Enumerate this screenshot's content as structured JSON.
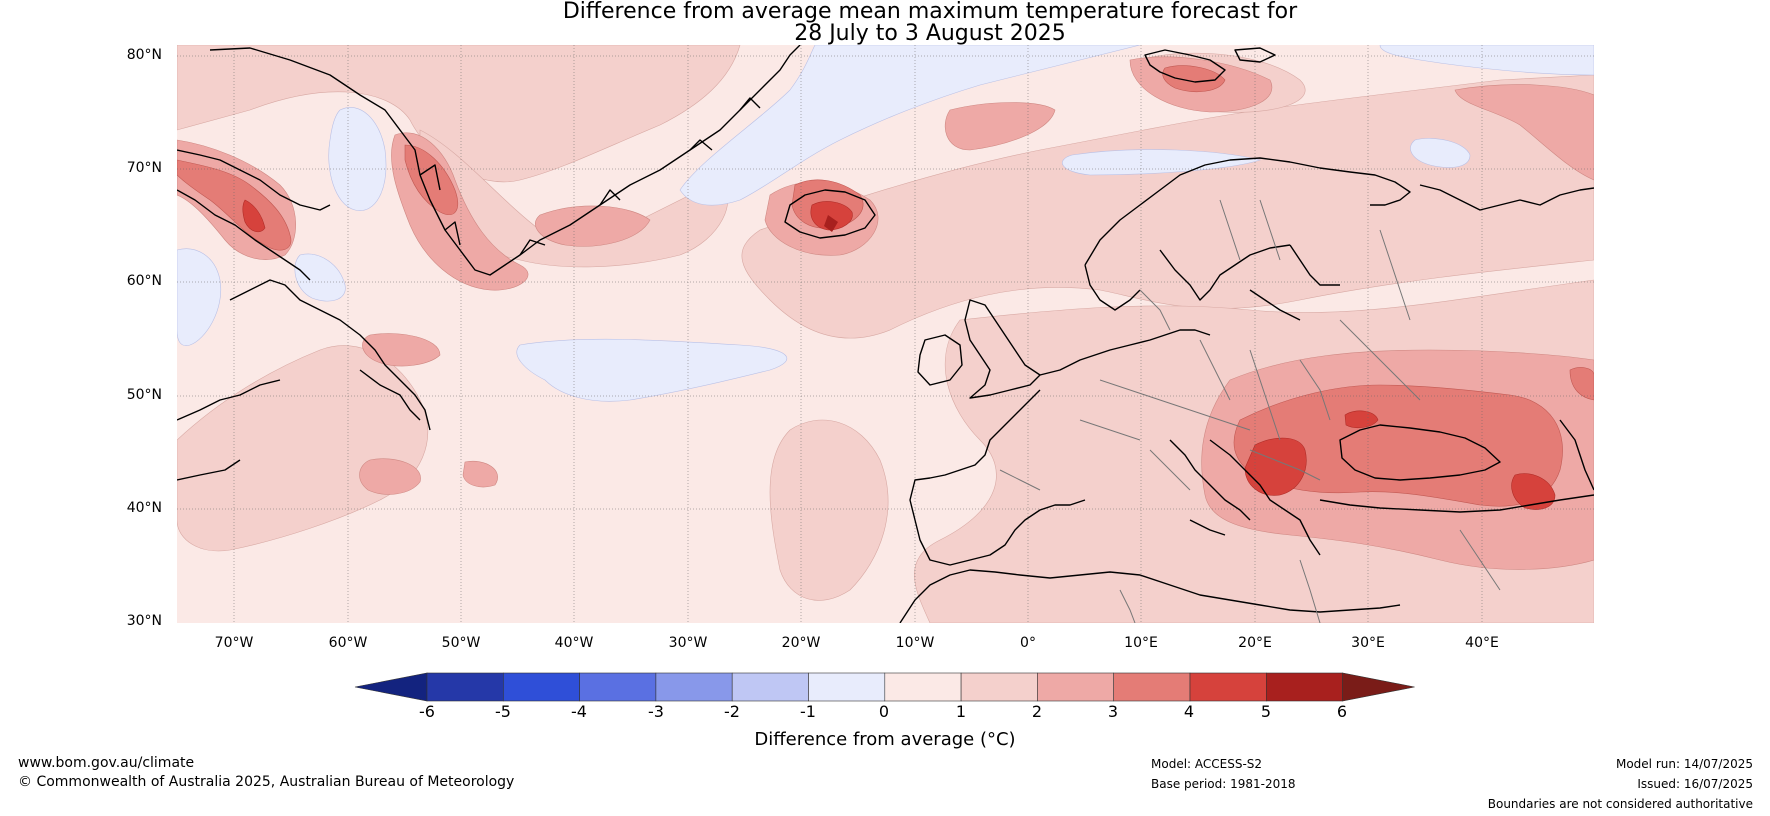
{
  "title": {
    "line1": "Difference from average mean maximum temperature forecast for",
    "line2": "28 July to 3 August 2025"
  },
  "lat_labels": [
    "80°N",
    "70°N",
    "60°N",
    "50°N",
    "40°N",
    "30°N"
  ],
  "lon_labels": [
    "70°W",
    "60°W",
    "50°W",
    "40°W",
    "30°W",
    "20°W",
    "10°W",
    "0°",
    "10°E",
    "20°E",
    "30°E",
    "40°E"
  ],
  "colorbar": {
    "ticks": [
      "-6",
      "-5",
      "-4",
      "-3",
      "-2",
      "-1",
      "0",
      "1",
      "2",
      "3",
      "4",
      "5",
      "6"
    ],
    "colors": [
      "#2538a8",
      "#2f4fd8",
      "#5a70e2",
      "#8898ea",
      "#bfc7f4",
      "#e8ecfc",
      "#fbe9e6",
      "#f4d0cc",
      "#eea9a6",
      "#e47c76",
      "#d6423c",
      "#a8201e"
    ],
    "under_color": "#13237f",
    "over_color": "#7a1c18",
    "label": "Difference from average (°C)"
  },
  "footer": {
    "url": "www.bom.gov.au/climate",
    "copyright": "© Commonwealth of Australia 2025, Australian Bureau of Meteorology",
    "model": "Model: ACCESS-S2",
    "base_period": "Base period: 1981-2018",
    "model_run": "Model run: 14/07/2025",
    "issued": "Issued: 16/07/2025",
    "disclaimer": "Boundaries are not considered authoritative"
  }
}
